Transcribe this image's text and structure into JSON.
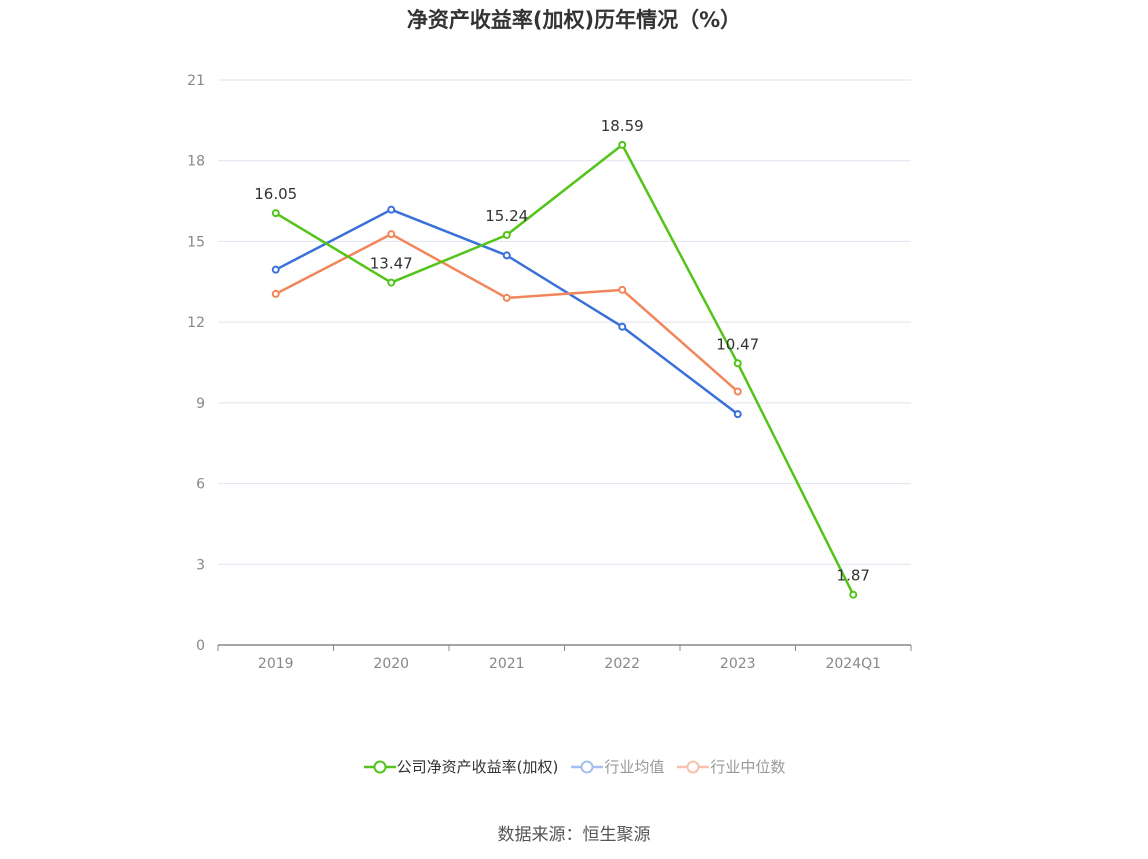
{
  "title": "净资产收益率(加权)历年情况（%）",
  "source": "数据来源：恒生聚源",
  "chart_data": {
    "type": "line",
    "title": "净资产收益率(加权)历年情况（%）",
    "categories": [
      "2019",
      "2020",
      "2021",
      "2022",
      "2023",
      "2024Q1"
    ],
    "yticks": [
      "0",
      "3",
      "6",
      "9",
      "12",
      "15",
      "18",
      "21"
    ],
    "ylim": [
      0,
      21
    ],
    "grid": true,
    "legend_position": "bottom",
    "series": [
      {
        "name": "公司净资产收益率(加权)",
        "color": "#52c41a",
        "values": [
          16.05,
          13.47,
          15.24,
          18.59,
          10.47,
          1.87
        ],
        "labels": [
          "16.05",
          "13.47",
          "15.24",
          "18.59",
          "10.47",
          "1.87"
        ],
        "active": true
      },
      {
        "name": "行业均值",
        "color": "#3a70d9",
        "legend_color": "#a4c0ee",
        "values": [
          13.95,
          16.18,
          14.48,
          11.83,
          8.58,
          null
        ],
        "active": false
      },
      {
        "name": "行业中位数",
        "color": "#f2865a",
        "legend_color": "#f6c2ad",
        "values": [
          13.05,
          15.27,
          12.9,
          13.2,
          9.42,
          null
        ],
        "active": false
      }
    ]
  }
}
